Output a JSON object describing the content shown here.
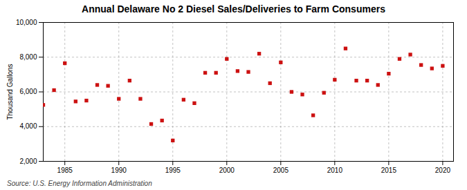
{
  "chart_data": {
    "type": "scatter",
    "title": "Annual Delaware No 2 Diesel Sales/Deliveries to Farm Consumers",
    "ylabel": "Thousand Gallons",
    "source": "Source: U.S. Energy Information Administration",
    "x": [
      1983,
      1984,
      1985,
      1986,
      1987,
      1988,
      1989,
      1990,
      1991,
      1992,
      1993,
      1994,
      1995,
      1996,
      1997,
      1998,
      1999,
      2000,
      2001,
      2002,
      2003,
      2004,
      2005,
      2006,
      2007,
      2008,
      2009,
      2010,
      2011,
      2012,
      2013,
      2014,
      2015,
      2016,
      2017,
      2018,
      2019,
      2020
    ],
    "values": [
      5250,
      6100,
      7650,
      5450,
      5500,
      6400,
      6350,
      5600,
      6650,
      5600,
      4150,
      4350,
      3200,
      5550,
      5350,
      7100,
      7100,
      7900,
      7200,
      7150,
      8200,
      6500,
      7700,
      6000,
      5850,
      4650,
      5950,
      6700,
      8500,
      6650,
      6650,
      6400,
      7050,
      7900,
      8150,
      7550,
      7350,
      7500
    ],
    "color": "#cc1111",
    "marker": "square",
    "xlim": [
      1983,
      2021
    ],
    "ylim": [
      2000,
      10000
    ],
    "xticks": [
      1985,
      1990,
      1995,
      2000,
      2005,
      2010,
      2015,
      2020
    ],
    "yticks": [
      {
        "value": 2000,
        "label": "2,000"
      },
      {
        "value": 4000,
        "label": "4,000"
      },
      {
        "value": 6000,
        "label": "6,000"
      },
      {
        "value": 8000,
        "label": "8,000"
      },
      {
        "value": 10000,
        "label": "10,000"
      }
    ],
    "grid": true
  }
}
